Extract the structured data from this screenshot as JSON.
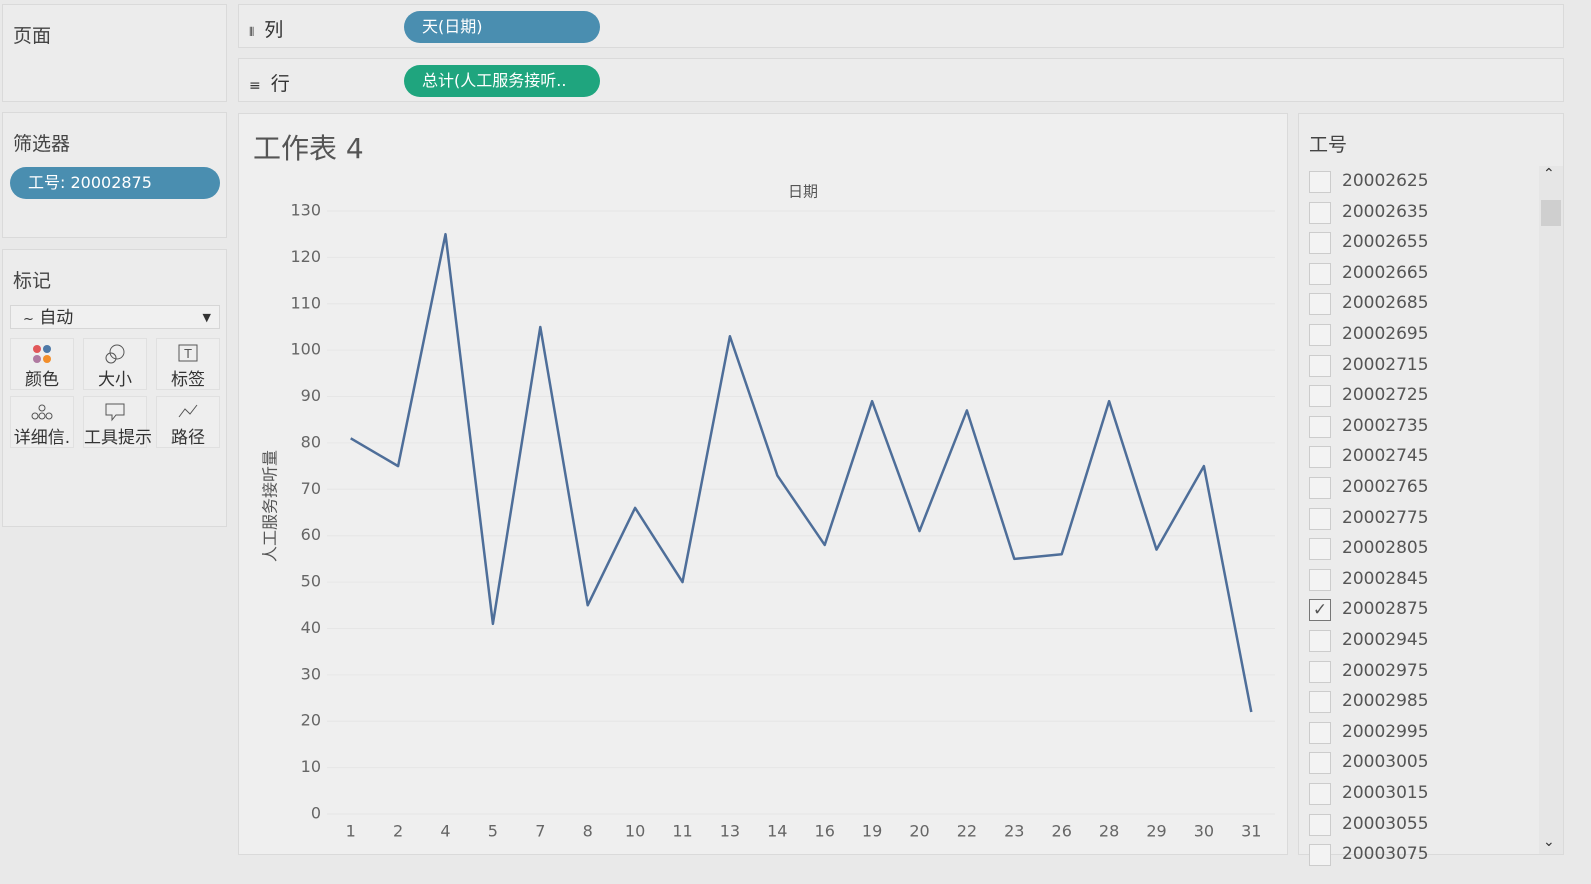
{
  "pages_panel": {
    "title": "页面"
  },
  "shelves": {
    "columns": {
      "label": "列",
      "pill": "天(日期)"
    },
    "rows": {
      "label": "行",
      "pill": "总计(人工服务接听.."
    }
  },
  "filters": {
    "title": "筛选器",
    "pill": "工号: 20002875"
  },
  "marks": {
    "title": "标记",
    "mark_type": "自动",
    "buttons": [
      "颜色",
      "大小",
      "标签",
      "详细信.",
      "工具提示",
      "路径"
    ]
  },
  "chart_data": {
    "type": "line",
    "title": "工作表 4",
    "x_label": "日期",
    "y_label": "人工服务接听量",
    "categories": [
      "1",
      "2",
      "4",
      "5",
      "7",
      "8",
      "10",
      "11",
      "13",
      "14",
      "16",
      "19",
      "20",
      "22",
      "23",
      "26",
      "28",
      "29",
      "30",
      "31"
    ],
    "values": [
      81,
      75,
      125,
      41,
      105,
      45,
      66,
      50,
      103,
      73,
      58,
      89,
      61,
      87,
      55,
      56,
      89,
      57,
      75,
      22
    ],
    "color": "#4e6e99",
    "ylim": [
      0,
      130
    ],
    "yticks": [
      0,
      10,
      20,
      30,
      40,
      50,
      60,
      70,
      80,
      90,
      100,
      110,
      120,
      130
    ],
    "grid": true
  },
  "id_filter": {
    "title": "工号",
    "items": [
      {
        "label": "20002625",
        "checked": false
      },
      {
        "label": "20002635",
        "checked": false
      },
      {
        "label": "20002655",
        "checked": false
      },
      {
        "label": "20002665",
        "checked": false
      },
      {
        "label": "20002685",
        "checked": false
      },
      {
        "label": "20002695",
        "checked": false
      },
      {
        "label": "20002715",
        "checked": false
      },
      {
        "label": "20002725",
        "checked": false
      },
      {
        "label": "20002735",
        "checked": false
      },
      {
        "label": "20002745",
        "checked": false
      },
      {
        "label": "20002765",
        "checked": false
      },
      {
        "label": "20002775",
        "checked": false
      },
      {
        "label": "20002805",
        "checked": false
      },
      {
        "label": "20002845",
        "checked": false
      },
      {
        "label": "20002875",
        "checked": true
      },
      {
        "label": "20002945",
        "checked": false
      },
      {
        "label": "20002975",
        "checked": false
      },
      {
        "label": "20002985",
        "checked": false
      },
      {
        "label": "20002995",
        "checked": false
      },
      {
        "label": "20003005",
        "checked": false
      },
      {
        "label": "20003015",
        "checked": false
      },
      {
        "label": "20003055",
        "checked": false
      },
      {
        "label": "20003075",
        "checked": false
      }
    ]
  }
}
